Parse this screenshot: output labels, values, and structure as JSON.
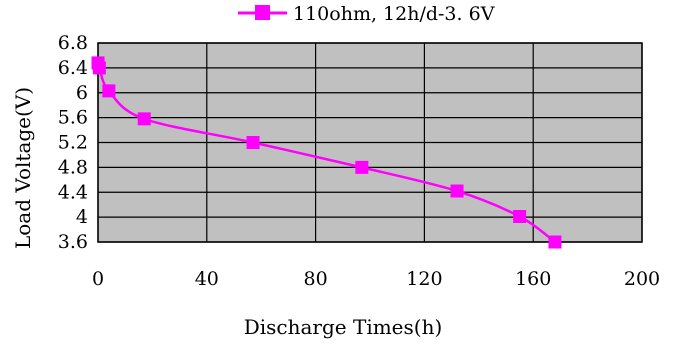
{
  "chart_data": {
    "type": "line",
    "title": "",
    "xlabel": "Discharge Times(h)",
    "ylabel": "Load Voltage(V)",
    "xlim": [
      0,
      200
    ],
    "ylim": [
      3.6,
      6.8
    ],
    "xticks": [
      "0",
      "40",
      "80",
      "120",
      "160",
      "200"
    ],
    "yticks": [
      "3.6",
      "4",
      "4.4",
      "4.8",
      "5.2",
      "5.6",
      "6",
      "6.4",
      "6.8"
    ],
    "xtick_values": [
      0,
      40,
      80,
      120,
      160,
      200
    ],
    "ytick_values": [
      3.6,
      4.0,
      4.4,
      4.8,
      5.2,
      5.6,
      6.0,
      6.4,
      6.8
    ],
    "grid": true,
    "plot_background": "#c0c0c0",
    "legend_position": "top",
    "series": [
      {
        "name": "110ohm, 12h/d-3. 6V",
        "color": "#ff00ff",
        "marker": "square",
        "x": [
          0,
          0.5,
          4,
          17,
          57,
          97,
          132,
          155,
          168
        ],
        "y": [
          6.48,
          6.4,
          6.03,
          5.58,
          5.2,
          4.8,
          4.42,
          4.01,
          3.6
        ]
      }
    ]
  }
}
